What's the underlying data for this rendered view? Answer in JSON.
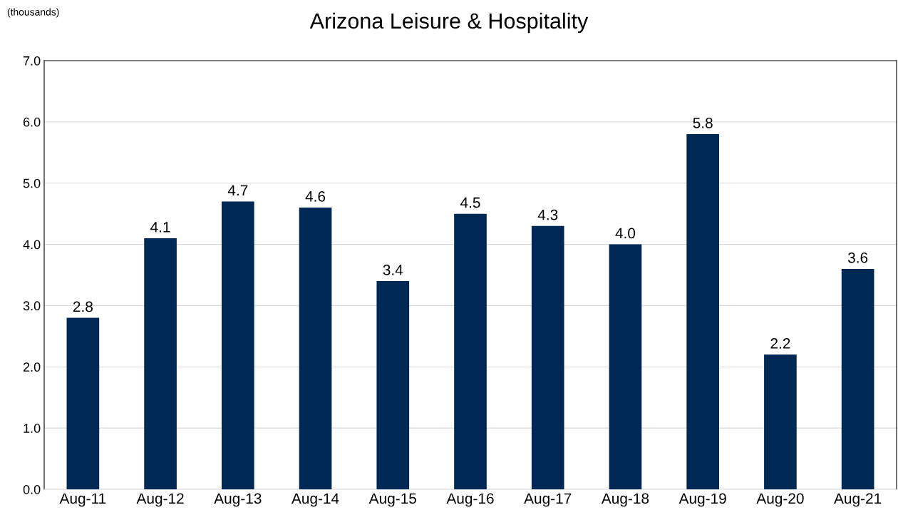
{
  "chart_data": {
    "type": "bar",
    "title": "Arizona Leisure & Hospitality",
    "ylabel": "(thousands)",
    "categories": [
      "Aug-11",
      "Aug-12",
      "Aug-13",
      "Aug-14",
      "Aug-15",
      "Aug-16",
      "Aug-17",
      "Aug-18",
      "Aug-19",
      "Aug-20",
      "Aug-21"
    ],
    "values": [
      2.8,
      4.1,
      4.7,
      4.6,
      3.4,
      4.5,
      4.3,
      4.0,
      5.8,
      2.2,
      3.6
    ],
    "value_labels": [
      "2.8",
      "4.1",
      "4.7",
      "4.6",
      "3.4",
      "4.5",
      "4.3",
      "4.0",
      "5.8",
      "2.2",
      "3.6"
    ],
    "color": "#002855",
    "ylim": [
      0,
      7
    ],
    "yticks": [
      {
        "value": 0,
        "label": "0.0"
      },
      {
        "value": 1,
        "label": "1.0"
      },
      {
        "value": 2,
        "label": "2.0"
      },
      {
        "value": 3,
        "label": "3.0"
      },
      {
        "value": 4,
        "label": "4.0"
      },
      {
        "value": 5,
        "label": "5.0"
      },
      {
        "value": 6,
        "label": "6.0"
      },
      {
        "value": 7,
        "label": "7.0"
      }
    ],
    "grid": "y",
    "legend": false
  }
}
